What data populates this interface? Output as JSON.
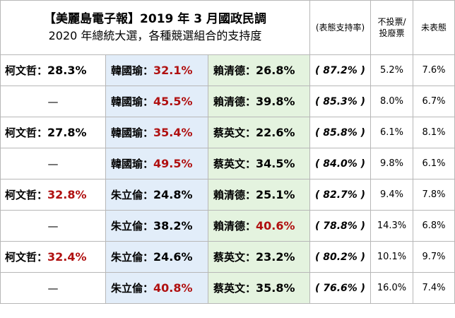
{
  "title_line1": "【美麗島電子報】2019 年 3 月國政民調",
  "title_line2": "2020 年總統大選，各種競選組合的支持度",
  "header": {
    "rate": "(表態支持率)",
    "no_vote_l1": "不投票/",
    "no_vote_l2": "投廢票",
    "undecided": "未表態"
  },
  "rows": [
    {
      "ko": "柯文哲：",
      "ko_pct": "28.3%",
      "a": "韓國瑜：",
      "a_pct": "32.1%",
      "b": "賴清德：",
      "b_pct": "26.8%",
      "rate": "( 87.2% )",
      "no_vote": "5.2%",
      "undecided": "7.6%"
    },
    {
      "ko": "—",
      "a": "韓國瑜：",
      "a_pct": "45.5%",
      "b": "賴清德：",
      "b_pct": "39.8%",
      "rate": "( 85.3% )",
      "no_vote": "8.0%",
      "undecided": "6.7%"
    },
    {
      "ko": "柯文哲：",
      "ko_pct": "27.8%",
      "a": "韓國瑜：",
      "a_pct": "35.4%",
      "b": "蔡英文：",
      "b_pct": "22.6%",
      "rate": "( 85.8% )",
      "no_vote": "6.1%",
      "undecided": "8.1%"
    },
    {
      "ko": "—",
      "a": "韓國瑜：",
      "a_pct": "49.5%",
      "b": "蔡英文：",
      "b_pct": "34.5%",
      "rate": "( 84.0% )",
      "no_vote": "9.8%",
      "undecided": "6.1%"
    },
    {
      "ko": "柯文哲：",
      "ko_pct": "32.8%",
      "a": "朱立倫：",
      "a_pct": "24.8%",
      "b": "賴清德：",
      "b_pct": "25.1%",
      "rate": "( 82.7% )",
      "no_vote": "9.4%",
      "undecided": "7.8%"
    },
    {
      "ko": "—",
      "a": "朱立倫：",
      "a_pct": "38.2%",
      "b": "賴清德：",
      "b_pct": "40.6%",
      "rate": "( 78.8% )",
      "no_vote": "14.3%",
      "undecided": "6.8%"
    },
    {
      "ko": "柯文哲：",
      "ko_pct": "32.4%",
      "a": "朱立倫：",
      "a_pct": "24.6%",
      "b": "蔡英文：",
      "b_pct": "23.2%",
      "rate": "( 80.2% )",
      "no_vote": "10.1%",
      "undecided": "9.7%"
    },
    {
      "ko": "—",
      "a": "朱立倫：",
      "a_pct": "40.8%",
      "b": "蔡英文：",
      "b_pct": "35.8%",
      "rate": "( 76.6% )",
      "no_vote": "16.0%",
      "undecided": "7.4%"
    }
  ],
  "colors": {
    "leading_pct": "#b01010",
    "other_pct": "#000000",
    "kmt_cell_bg": "#e2edf9",
    "dpp_cell_bg": "#e4f3df"
  }
}
